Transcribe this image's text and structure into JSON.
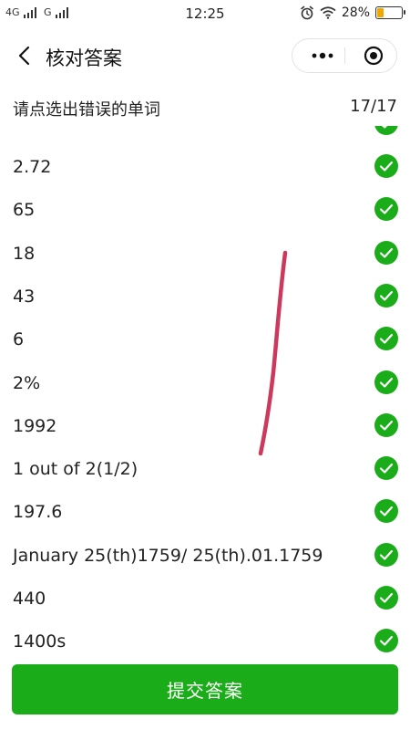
{
  "status_bar": {
    "network_1": "4G",
    "network_2": "G",
    "time": "12:25",
    "battery_percent": "28%",
    "battery_level": 0.28,
    "icons": [
      "alarm-icon",
      "wifi-icon",
      "battery-icon"
    ]
  },
  "nav": {
    "title": "核对答案",
    "icons": [
      "back-chevron-icon",
      "more-dots-icon",
      "target-icon"
    ]
  },
  "header": {
    "instruction": "请点选出错误的单词",
    "counter": "17/17"
  },
  "answers": [
    "2.72",
    "65",
    "18",
    "43",
    "6",
    "2%",
    "1992",
    "1 out of 2(1/2)",
    "197.6",
    "January 25(th)1759/ 25(th).01.1759",
    "440",
    "1400s"
  ],
  "colors": {
    "check_green": "#1aad19",
    "submit_green": "#1aad19",
    "stroke_red": "#c8244a"
  },
  "submit_label": "提交答案"
}
